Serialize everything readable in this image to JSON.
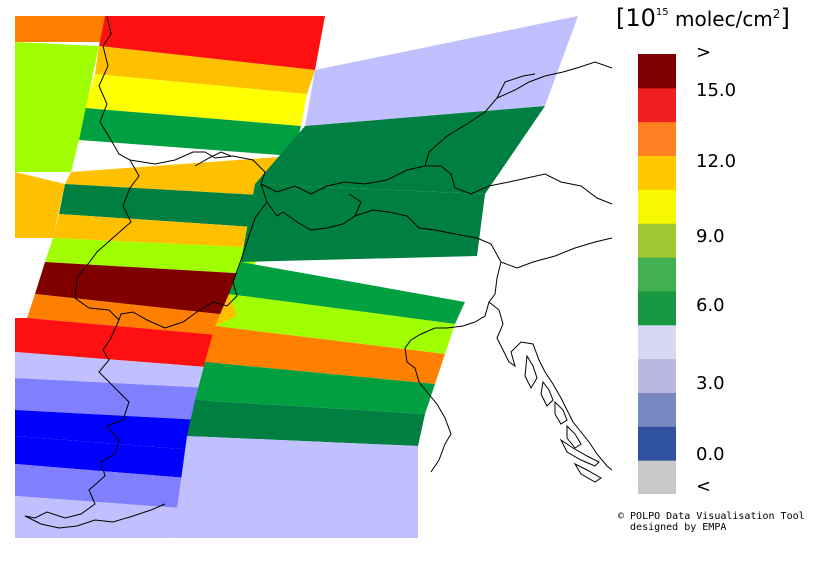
{
  "map": {
    "bands": [
      {
        "color": "#FF8000"
      },
      {
        "color": "#FF1010"
      },
      {
        "color": "#FFC000"
      },
      {
        "color": "#FFFF00"
      },
      {
        "color": "#00A040"
      },
      {
        "color": "#A0FF00"
      },
      {
        "color": "#FFC000"
      },
      {
        "color": "#008040"
      },
      {
        "color": "#FFC000"
      },
      {
        "color": "#FFC000"
      },
      {
        "color": "#A0FF00"
      },
      {
        "color": "#800000"
      },
      {
        "color": "#FF8000"
      },
      {
        "color": "#FF1010"
      },
      {
        "color": "#C0C0FF"
      },
      {
        "color": "#8080FF"
      },
      {
        "color": "#0000FF"
      },
      {
        "color": "#0000FF"
      },
      {
        "color": "#8080FF"
      },
      {
        "color": "#C0C0FF"
      },
      {
        "color": "#00A040"
      },
      {
        "color": "#A0FF00"
      },
      {
        "color": "#FF8000"
      },
      {
        "color": "#FFC000"
      },
      {
        "color": "#00A040"
      },
      {
        "color": "#008040"
      },
      {
        "color": "#C0C0FF"
      },
      {
        "color": "#008040"
      },
      {
        "color": "#C0C0FF"
      },
      {
        "color": "#008040"
      }
    ]
  },
  "legend": {
    "title_prefix": "[10",
    "title_exp": "15",
    "title_unit": " molec/cm",
    "title_sq": "2",
    "title_suffix": "]",
    "colors": [
      "#C8C8C8",
      "#3050A0",
      "#7888C0",
      "#B8B8E0",
      "#D8D8F0",
      "#189840",
      "#40B050",
      "#A0C830",
      "#F8F800",
      "#FFC800",
      "#FF8020",
      "#F02020",
      "#800000"
    ],
    "labels": {
      "gt": ">",
      "v15": "15.0",
      "v12": "12.0",
      "v9": "9.0",
      "v6": "6.0",
      "v3": "3.0",
      "v0": "0.0",
      "lt": "<"
    }
  },
  "credit": {
    "line1": "© POLPO Data Visualisation Tool",
    "line2": "  designed by EMPA"
  }
}
